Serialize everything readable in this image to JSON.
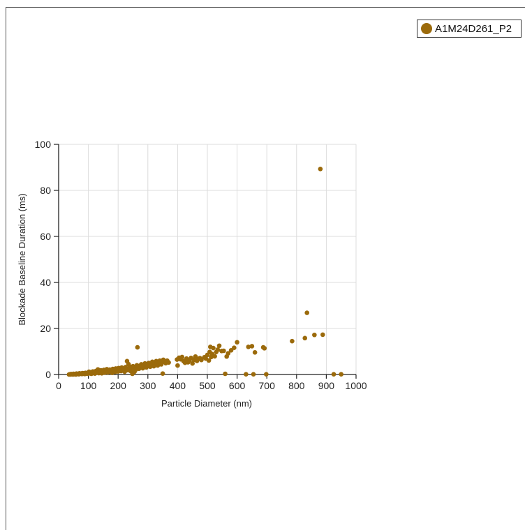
{
  "legend": {
    "label": "A1M24D261_P2"
  },
  "colors": {
    "series": "#9b6a0b",
    "grid": "#dcdcdc",
    "axis": "#222222"
  },
  "chart_data": {
    "type": "scatter",
    "title": "",
    "xlabel": "Particle Diameter (nm)",
    "ylabel": "Blockade Baseline Duration (ms)",
    "xlim": [
      0,
      1000
    ],
    "ylim": [
      0,
      100
    ],
    "xticks": [
      0,
      100,
      200,
      300,
      400,
      500,
      600,
      700,
      800,
      900,
      1000
    ],
    "yticks": [
      0,
      20,
      40,
      60,
      80,
      100
    ],
    "grid": true,
    "legend_position": "top-right",
    "series": [
      {
        "name": "A1M24D261_P2",
        "points": [
          [
            35,
            0
          ],
          [
            38,
            0.1
          ],
          [
            40,
            0
          ],
          [
            42,
            0.2
          ],
          [
            45,
            0.1
          ],
          [
            48,
            0
          ],
          [
            50,
            0.3
          ],
          [
            52,
            0.1
          ],
          [
            55,
            0.2
          ],
          [
            58,
            0
          ],
          [
            60,
            0.4
          ],
          [
            62,
            0.2
          ],
          [
            65,
            0.3
          ],
          [
            68,
            0.1
          ],
          [
            70,
            0.5
          ],
          [
            72,
            0.3
          ],
          [
            75,
            0.4
          ],
          [
            78,
            0.2
          ],
          [
            80,
            0.6
          ],
          [
            82,
            0.3
          ],
          [
            85,
            0.5
          ],
          [
            88,
            0.2
          ],
          [
            90,
            0.7
          ],
          [
            92,
            0.4
          ],
          [
            95,
            0.6
          ],
          [
            98,
            0.3
          ],
          [
            100,
            0.8
          ],
          [
            102,
            1.2
          ],
          [
            105,
            0.5
          ],
          [
            108,
            1
          ],
          [
            110,
            0.3
          ],
          [
            112,
            0.9
          ],
          [
            115,
            1.3
          ],
          [
            118,
            0.6
          ],
          [
            120,
            1.1
          ],
          [
            122,
            0.4
          ],
          [
            125,
            1.5
          ],
          [
            128,
            0.8
          ],
          [
            130,
            1.2
          ],
          [
            132,
            2.2
          ],
          [
            135,
            0.6
          ],
          [
            138,
            1.4
          ],
          [
            140,
            1
          ],
          [
            142,
            1.8
          ],
          [
            145,
            0.5
          ],
          [
            148,
            1.6
          ],
          [
            150,
            1.1
          ],
          [
            152,
            2
          ],
          [
            155,
            0.8
          ],
          [
            158,
            1.5
          ],
          [
            160,
            1.2
          ],
          [
            162,
            2.3
          ],
          [
            165,
            0.9
          ],
          [
            168,
            1.7
          ],
          [
            170,
            1.3
          ],
          [
            172,
            2.1
          ],
          [
            175,
            1
          ],
          [
            178,
            1.8
          ],
          [
            180,
            0.7
          ],
          [
            182,
            2.4
          ],
          [
            185,
            1.4
          ],
          [
            188,
            2
          ],
          [
            190,
            1.1
          ],
          [
            192,
            2.6
          ],
          [
            195,
            1.6
          ],
          [
            198,
            2.2
          ],
          [
            200,
            1.3
          ],
          [
            202,
            2.8
          ],
          [
            205,
            1.9
          ],
          [
            208,
            2.4
          ],
          [
            210,
            1.5
          ],
          [
            212,
            3
          ],
          [
            215,
            2.1
          ],
          [
            218,
            1.7
          ],
          [
            220,
            2.6
          ],
          [
            222,
            1.2
          ],
          [
            225,
            3.2
          ],
          [
            228,
            2.3
          ],
          [
            230,
            5.8
          ],
          [
            232,
            1.9
          ],
          [
            235,
            4.5
          ],
          [
            238,
            2.5
          ],
          [
            240,
            3.4
          ],
          [
            242,
            1.5
          ],
          [
            245,
            2.8
          ],
          [
            248,
            0.3
          ],
          [
            250,
            3.6
          ],
          [
            252,
            2.9
          ],
          [
            255,
            1.2
          ],
          [
            258,
            3.1
          ],
          [
            260,
            2.2
          ],
          [
            263,
            4
          ],
          [
            265,
            11.8
          ],
          [
            268,
            3.3
          ],
          [
            270,
            2.5
          ],
          [
            273,
            3.8
          ],
          [
            275,
            2.9
          ],
          [
            278,
            4.4
          ],
          [
            280,
            3.5
          ],
          [
            283,
            2.7
          ],
          [
            285,
            4.2
          ],
          [
            288,
            3.3
          ],
          [
            290,
            4.8
          ],
          [
            293,
            3.9
          ],
          [
            295,
            3.1
          ],
          [
            298,
            4.6
          ],
          [
            300,
            3.7
          ],
          [
            303,
            5
          ],
          [
            305,
            4.2
          ],
          [
            308,
            3.4
          ],
          [
            310,
            4.9
          ],
          [
            313,
            4.1
          ],
          [
            315,
            5.5
          ],
          [
            318,
            4.3
          ],
          [
            320,
            3.6
          ],
          [
            323,
            5.1
          ],
          [
            325,
            4.5
          ],
          [
            328,
            5.8
          ],
          [
            330,
            4.7
          ],
          [
            333,
            3.9
          ],
          [
            335,
            5.4
          ],
          [
            338,
            4.8
          ],
          [
            340,
            6
          ],
          [
            343,
            5.2
          ],
          [
            345,
            4.4
          ],
          [
            348,
            5.7
          ],
          [
            350,
            0.4
          ],
          [
            352,
            6.4
          ],
          [
            355,
            5.5
          ],
          [
            360,
            4.9
          ],
          [
            365,
            6
          ],
          [
            370,
            5.2
          ],
          [
            398,
            6.5
          ],
          [
            400,
            3.9
          ],
          [
            405,
            7.3
          ],
          [
            410,
            6.6
          ],
          [
            415,
            7.6
          ],
          [
            420,
            5.8
          ],
          [
            425,
            5.1
          ],
          [
            430,
            6.9
          ],
          [
            435,
            5.3
          ],
          [
            440,
            6.2
          ],
          [
            445,
            7.2
          ],
          [
            450,
            4.8
          ],
          [
            455,
            6.4
          ],
          [
            460,
            7.8
          ],
          [
            465,
            5.9
          ],
          [
            470,
            6.8
          ],
          [
            475,
            7.1
          ],
          [
            480,
            6.3
          ],
          [
            490,
            7.5
          ],
          [
            495,
            6.9
          ],
          [
            500,
            8.5
          ],
          [
            505,
            6.1
          ],
          [
            508,
            9.8
          ],
          [
            510,
            12
          ],
          [
            513,
            7.6
          ],
          [
            516,
            8.9
          ],
          [
            520,
            11.5
          ],
          [
            525,
            7.9
          ],
          [
            530,
            9.8
          ],
          [
            535,
            10.8
          ],
          [
            540,
            12.5
          ],
          [
            548,
            10.2
          ],
          [
            555,
            10.3
          ],
          [
            560,
            0.3
          ],
          [
            565,
            7.8
          ],
          [
            570,
            9.2
          ],
          [
            580,
            10.5
          ],
          [
            590,
            11.6
          ],
          [
            600,
            14
          ],
          [
            630,
            0.1
          ],
          [
            638,
            12
          ],
          [
            650,
            12.3
          ],
          [
            655,
            0.1
          ],
          [
            660,
            9.6
          ],
          [
            688,
            11.8
          ],
          [
            692,
            11.4
          ],
          [
            698,
            0.1
          ],
          [
            785,
            14.5
          ],
          [
            828,
            15.8
          ],
          [
            835,
            26.8
          ],
          [
            860,
            17.2
          ],
          [
            880,
            89.3
          ],
          [
            888,
            17.3
          ],
          [
            925,
            0.1
          ],
          [
            950,
            0.1
          ]
        ]
      }
    ]
  }
}
